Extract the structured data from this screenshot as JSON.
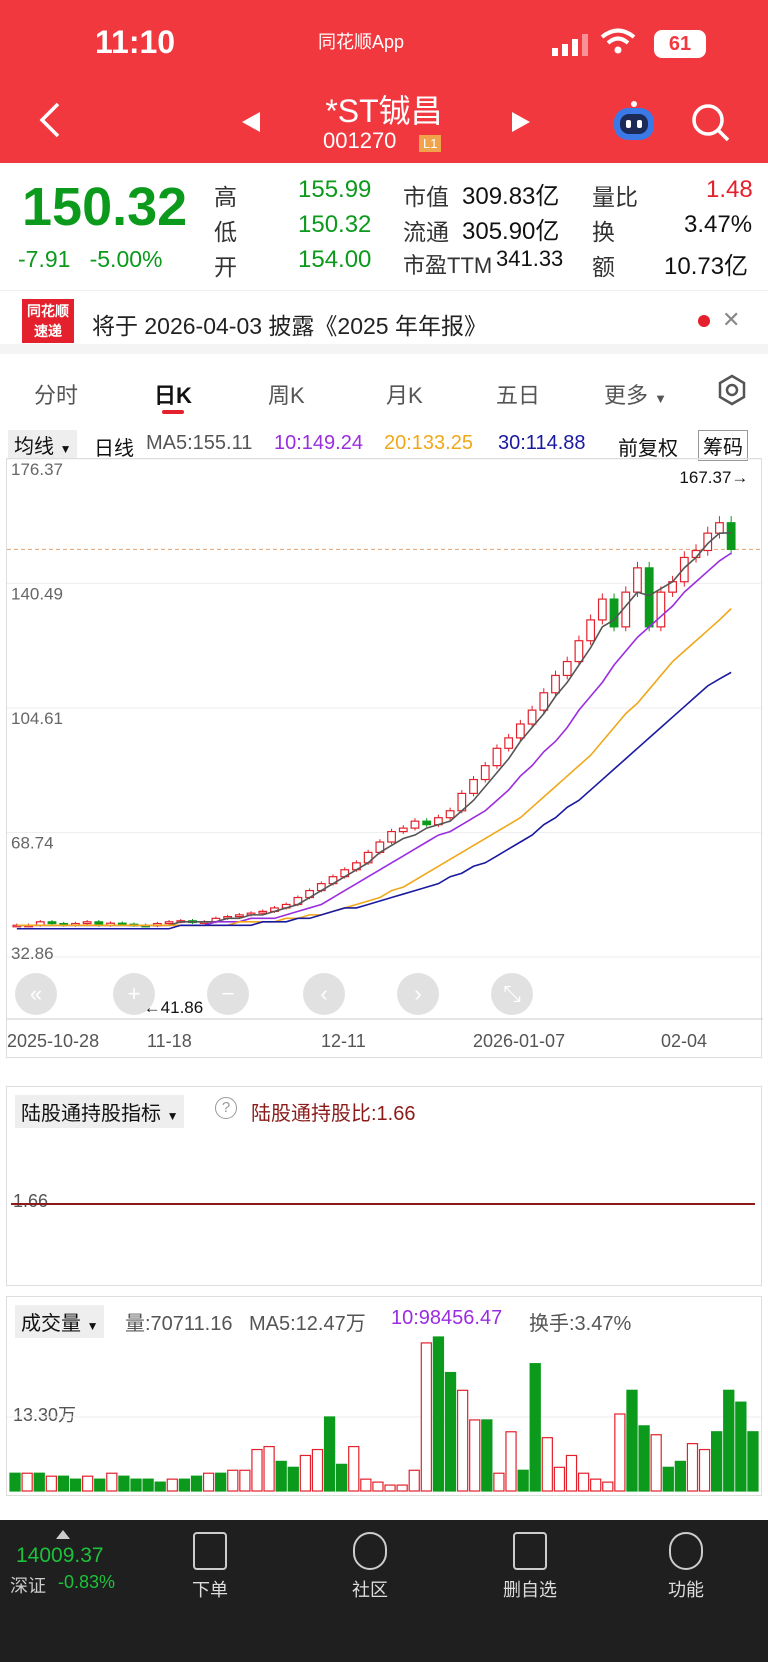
{
  "status": {
    "time": "11:10",
    "app_name": "同花顺App",
    "battery": "61"
  },
  "header": {
    "name": "*ST铖昌",
    "code": "001270",
    "level": "L1"
  },
  "quote": {
    "price": "150.32",
    "change": "-7.91",
    "change_pct": "-5.00%",
    "high_label": "高",
    "high": "155.99",
    "low_label": "低",
    "low": "150.32",
    "open_label": "开",
    "open": "154.00",
    "mktcap_label": "市值",
    "mktcap": "309.83亿",
    "float_label": "流通",
    "float": "305.90亿",
    "pe_label": "市盈TTM",
    "pe": "341.33",
    "vr_label": "量比",
    "vr": "1.48",
    "turnover_label": "换",
    "turnover": "3.47%",
    "amount_label": "额",
    "amount": "10.73亿"
  },
  "notice": {
    "logo_top": "同花顺",
    "logo_bottom": "速递",
    "text": "将于 2026-04-03 披露《2025 年年报》"
  },
  "tabs": [
    "分时",
    "日K",
    "周K",
    "月K",
    "五日",
    "更多"
  ],
  "ma": {
    "selector": "均线",
    "period": "日线",
    "ma5": "MA5:155.11",
    "ma10": "10:149.24",
    "ma20": "20:133.25",
    "ma30": "30:114.88",
    "adj": "前复权",
    "chips": "筹码"
  },
  "colors": {
    "brand": "#f2383f",
    "up": "#e3202b",
    "down": "#0b9a1c",
    "ma5": "#555555",
    "ma10": "#9b2de0",
    "ma20": "#f0a81a",
    "ma30": "#1a1aa0"
  },
  "chart_data": {
    "type": "candlestick",
    "y_ticks": [
      "176.37",
      "140.49",
      "104.61",
      "68.74",
      "32.86"
    ],
    "ylim": [
      32.86,
      176.37
    ],
    "x_labels": [
      "2025-10-28",
      "11-18",
      "12-11",
      "2026-01-07",
      "02-04"
    ],
    "max_label": "167.37→",
    "min_label": "←41.86",
    "close": [
      42,
      42,
      43,
      42.5,
      42,
      42.5,
      43,
      42,
      42.6,
      42.3,
      42,
      41.86,
      42.5,
      43,
      43.3,
      42.8,
      43,
      44,
      44.5,
      45,
      45.5,
      46,
      47,
      48,
      50,
      52,
      54,
      56,
      58,
      60,
      63,
      66,
      69,
      70,
      72,
      71,
      73,
      75,
      80,
      84,
      88,
      93,
      96,
      100,
      104,
      109,
      114,
      118,
      124,
      130,
      136,
      128,
      138,
      145,
      128,
      138,
      141,
      148,
      150,
      155,
      158,
      150.32
    ],
    "ma5": [
      42,
      42,
      42,
      42,
      42,
      42,
      42,
      42,
      42,
      42,
      42,
      42,
      42,
      42,
      43,
      43,
      43,
      43,
      44,
      44,
      45,
      45,
      46,
      47,
      48,
      50,
      52,
      54,
      56,
      58,
      60,
      63,
      65,
      67,
      68,
      70,
      71,
      72,
      75,
      78,
      82,
      86,
      90,
      95,
      99,
      103,
      108,
      112,
      117,
      122,
      128,
      130,
      134,
      138,
      137,
      139,
      141,
      145,
      148,
      152,
      155,
      155.11
    ],
    "ma10": [
      42,
      42,
      42,
      42,
      42,
      42,
      42,
      42,
      42,
      42,
      42,
      42,
      42,
      42,
      42,
      42,
      42,
      43,
      43,
      43,
      44,
      44,
      44,
      45,
      46,
      47,
      48,
      50,
      52,
      54,
      56,
      58,
      60,
      62,
      64,
      66,
      68,
      69,
      71,
      73,
      75,
      78,
      81,
      85,
      88,
      92,
      95,
      99,
      104,
      108,
      112,
      117,
      121,
      125,
      128,
      131,
      134,
      138,
      141,
      144,
      147,
      149.24
    ],
    "ma20": [
      42,
      42,
      42,
      42,
      42,
      42,
      42,
      42,
      42,
      42,
      42,
      42,
      42,
      42,
      42,
      42,
      42,
      42,
      42,
      43,
      43,
      43,
      43,
      44,
      44,
      45,
      45,
      46,
      47,
      48,
      49,
      50,
      52,
      53,
      55,
      57,
      59,
      61,
      63,
      65,
      67,
      69,
      71,
      73,
      76,
      79,
      82,
      85,
      88,
      91,
      95,
      99,
      103,
      106,
      110,
      114,
      118,
      121,
      124,
      127,
      130,
      133.25
    ],
    "ma30": [
      41,
      41,
      41,
      41,
      41,
      41,
      41,
      41,
      41,
      41,
      41,
      41,
      41,
      41,
      42,
      42,
      42,
      42,
      42,
      42,
      42,
      43,
      43,
      43,
      44,
      44,
      45,
      46,
      47,
      47,
      48,
      49,
      50,
      51,
      52,
      53,
      54,
      56,
      57,
      59,
      60,
      62,
      64,
      66,
      68,
      71,
      73,
      76,
      78,
      81,
      84,
      87,
      90,
      93,
      96,
      99,
      102,
      105,
      108,
      111,
      113,
      114.88
    ]
  },
  "indicator": {
    "selector": "陆股通持股指标",
    "value_label": "陆股通持股比:1.66",
    "level_label": "1.66"
  },
  "volume": {
    "selector": "成交量",
    "vol": "量:70711.16",
    "ma5": "MA5:12.47万",
    "ma10": "10:98456.47",
    "turnover": "换手:3.47%",
    "axis": "13.30万",
    "bars": [
      3,
      3,
      3,
      2.5,
      2.5,
      2,
      2.5,
      2,
      3,
      2.5,
      2,
      2,
      1.5,
      2,
      2,
      2.5,
      3,
      3,
      3.5,
      3.5,
      7,
      7.5,
      5,
      4,
      6,
      7,
      12.5,
      4.5,
      7.5,
      2,
      1.5,
      1,
      1,
      3.5,
      25,
      26,
      20,
      17,
      12,
      12,
      3,
      10,
      3.5,
      21.5,
      9,
      4,
      6,
      3,
      2,
      1.5,
      13,
      17,
      11,
      9.5,
      4,
      5,
      8,
      7,
      10,
      17,
      15,
      10
    ],
    "up": [
      false,
      true,
      false,
      true,
      false,
      false,
      true,
      false,
      true,
      false,
      false,
      false,
      false,
      true,
      false,
      false,
      true,
      false,
      true,
      true,
      true,
      true,
      false,
      false,
      true,
      true,
      false,
      false,
      true,
      true,
      true,
      true,
      true,
      true,
      true,
      false,
      false,
      true,
      true,
      false,
      true,
      true,
      false,
      false,
      true,
      true,
      true,
      true,
      true,
      true,
      true,
      false,
      false,
      true,
      false,
      false,
      true,
      true,
      false,
      false,
      false,
      false
    ]
  },
  "bottom": {
    "index_value": "14009.37",
    "index_name": "深证",
    "index_change": "-0.83%",
    "nav": [
      "下单",
      "社区",
      "删自选",
      "功能"
    ]
  }
}
